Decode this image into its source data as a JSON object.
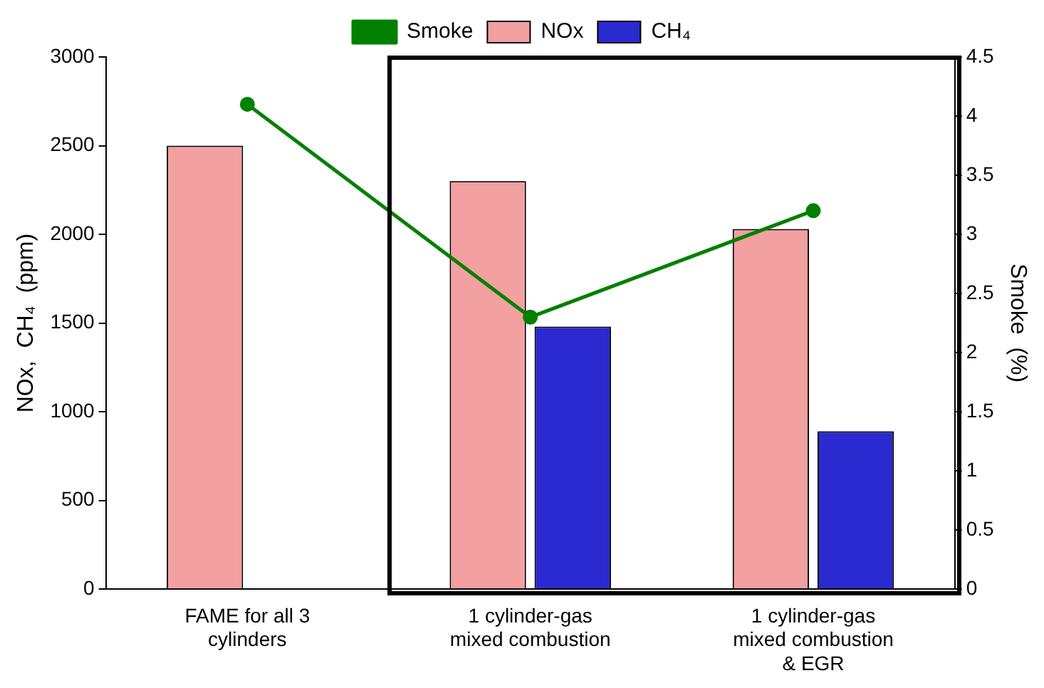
{
  "chart_data": {
    "type": "bar",
    "categories": [
      "FAME for all 3 cylinders",
      "1 cylinder-gas mixed combustion",
      "1 cylinder-gas mixed combustion & EGR"
    ],
    "series": [
      {
        "name": "NOx",
        "color": "#f2a0a0",
        "values": [
          2500,
          2300,
          2030
        ]
      },
      {
        "name": "CH₄",
        "color": "#2a2ad0",
        "values": [
          null,
          1480,
          890
        ]
      },
      {
        "name": "Smoke",
        "type": "line",
        "axis": "y2",
        "color": "#008000",
        "values": [
          4.1,
          2.3,
          3.2
        ]
      }
    ],
    "ylabel": "NOx,  CH₄  (ppm)",
    "y2label": "Smoke  (%)",
    "ylim": [
      0,
      3000
    ],
    "yticks": [
      0,
      500,
      1000,
      1500,
      2000,
      2500,
      3000
    ],
    "y2lim": [
      0,
      4.5
    ],
    "y2ticks": [
      0,
      0.5,
      1,
      1.5,
      2,
      2.5,
      3,
      3.5,
      4,
      4.5
    ],
    "grid": false,
    "legend": "top",
    "marker": "circle",
    "line_style": "solid"
  }
}
